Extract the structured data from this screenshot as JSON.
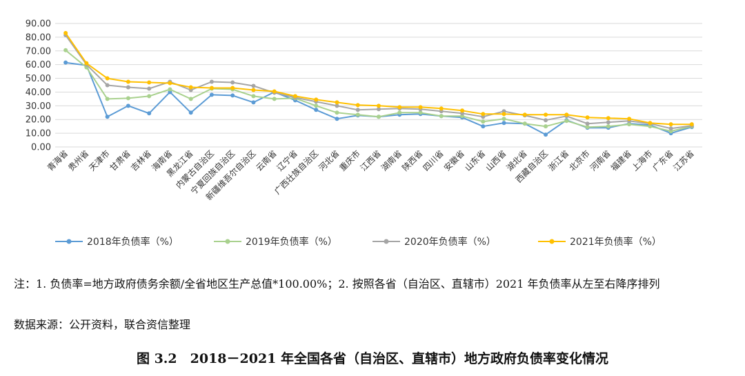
{
  "chart_data": {
    "type": "line",
    "title": "",
    "xlabel": "",
    "ylabel": "",
    "ylim": [
      0,
      90
    ],
    "y_ticks": [
      "0.00",
      "10.00",
      "20.00",
      "30.00",
      "40.00",
      "50.00",
      "60.00",
      "70.00",
      "80.00",
      "90.00"
    ],
    "grid": "horizontal",
    "legend_position": "bottom",
    "categories": [
      "青海省",
      "贵州省",
      "天津市",
      "甘肃省",
      "吉林省",
      "海南省",
      "黑龙江省",
      "内蒙古自治区",
      "宁夏回族自治区",
      "新疆维吾尔自治区",
      "云南省",
      "辽宁省",
      "广西壮族自治区",
      "河北省",
      "重庆市",
      "江西省",
      "湖南省",
      "陕西省",
      "四川省",
      "安徽省",
      "山东省",
      "山西省",
      "湖北省",
      "西藏自治区",
      "浙江省",
      "北京市",
      "河南省",
      "福建省",
      "上海市",
      "广东省",
      "江苏省"
    ],
    "series": [
      {
        "name": "2018年负债率（%）",
        "color": "#5b9bd5",
        "values": [
          61.5,
          59.5,
          22.0,
          30.0,
          24.5,
          40.0,
          25.0,
          38.0,
          37.5,
          32.5,
          40.0,
          34.0,
          27.0,
          20.5,
          23.0,
          22.0,
          23.5,
          24.0,
          22.5,
          21.5,
          15.0,
          17.5,
          17.0,
          9.0,
          19.5,
          14.0,
          14.0,
          17.0,
          16.0,
          10.0,
          14.5
        ]
      },
      {
        "name": "2019年负债率（%）",
        "color": "#a9d18e",
        "values": [
          70.5,
          58.0,
          35.0,
          35.5,
          37.0,
          42.0,
          35.0,
          42.5,
          42.0,
          37.0,
          35.0,
          35.5,
          30.0,
          25.0,
          23.5,
          22.0,
          25.0,
          25.0,
          22.5,
          22.5,
          18.5,
          20.5,
          17.0,
          15.0,
          19.0,
          14.5,
          15.0,
          16.5,
          15.0,
          11.5,
          15.0
        ]
      },
      {
        "name": "2020年负债率（%）",
        "color": "#a5a5a5",
        "values": [
          81.5,
          60.0,
          45.0,
          43.5,
          42.5,
          47.5,
          41.5,
          47.5,
          47.0,
          44.5,
          39.5,
          36.0,
          33.0,
          30.0,
          27.0,
          27.5,
          28.0,
          27.5,
          26.0,
          24.5,
          22.0,
          26.0,
          23.0,
          19.5,
          22.5,
          17.0,
          18.0,
          19.0,
          17.0,
          13.5,
          15.5
        ]
      },
      {
        "name": "2021年负债率（%）",
        "color": "#ffc000",
        "values": [
          83.0,
          61.0,
          50.0,
          47.5,
          47.0,
          46.5,
          43.5,
          43.0,
          43.0,
          41.5,
          40.5,
          37.0,
          34.5,
          32.5,
          30.5,
          30.0,
          29.0,
          29.0,
          28.0,
          26.5,
          24.0,
          24.0,
          23.5,
          23.5,
          23.5,
          21.5,
          21.0,
          20.5,
          17.5,
          16.5,
          16.5
        ]
      }
    ]
  },
  "notes": {
    "line1": "注：1. 负债率=地方政府债务余额/全省地区生产总值*100.00%；2. 按照各省（自治区、直辖市）2021 年负债率从左至右降序排列",
    "source": "数据来源：公开资料，联合资信整理"
  },
  "caption": "图 3.2　2018－2021 年全国各省（自治区、直辖市）地方政府负债率变化情况"
}
